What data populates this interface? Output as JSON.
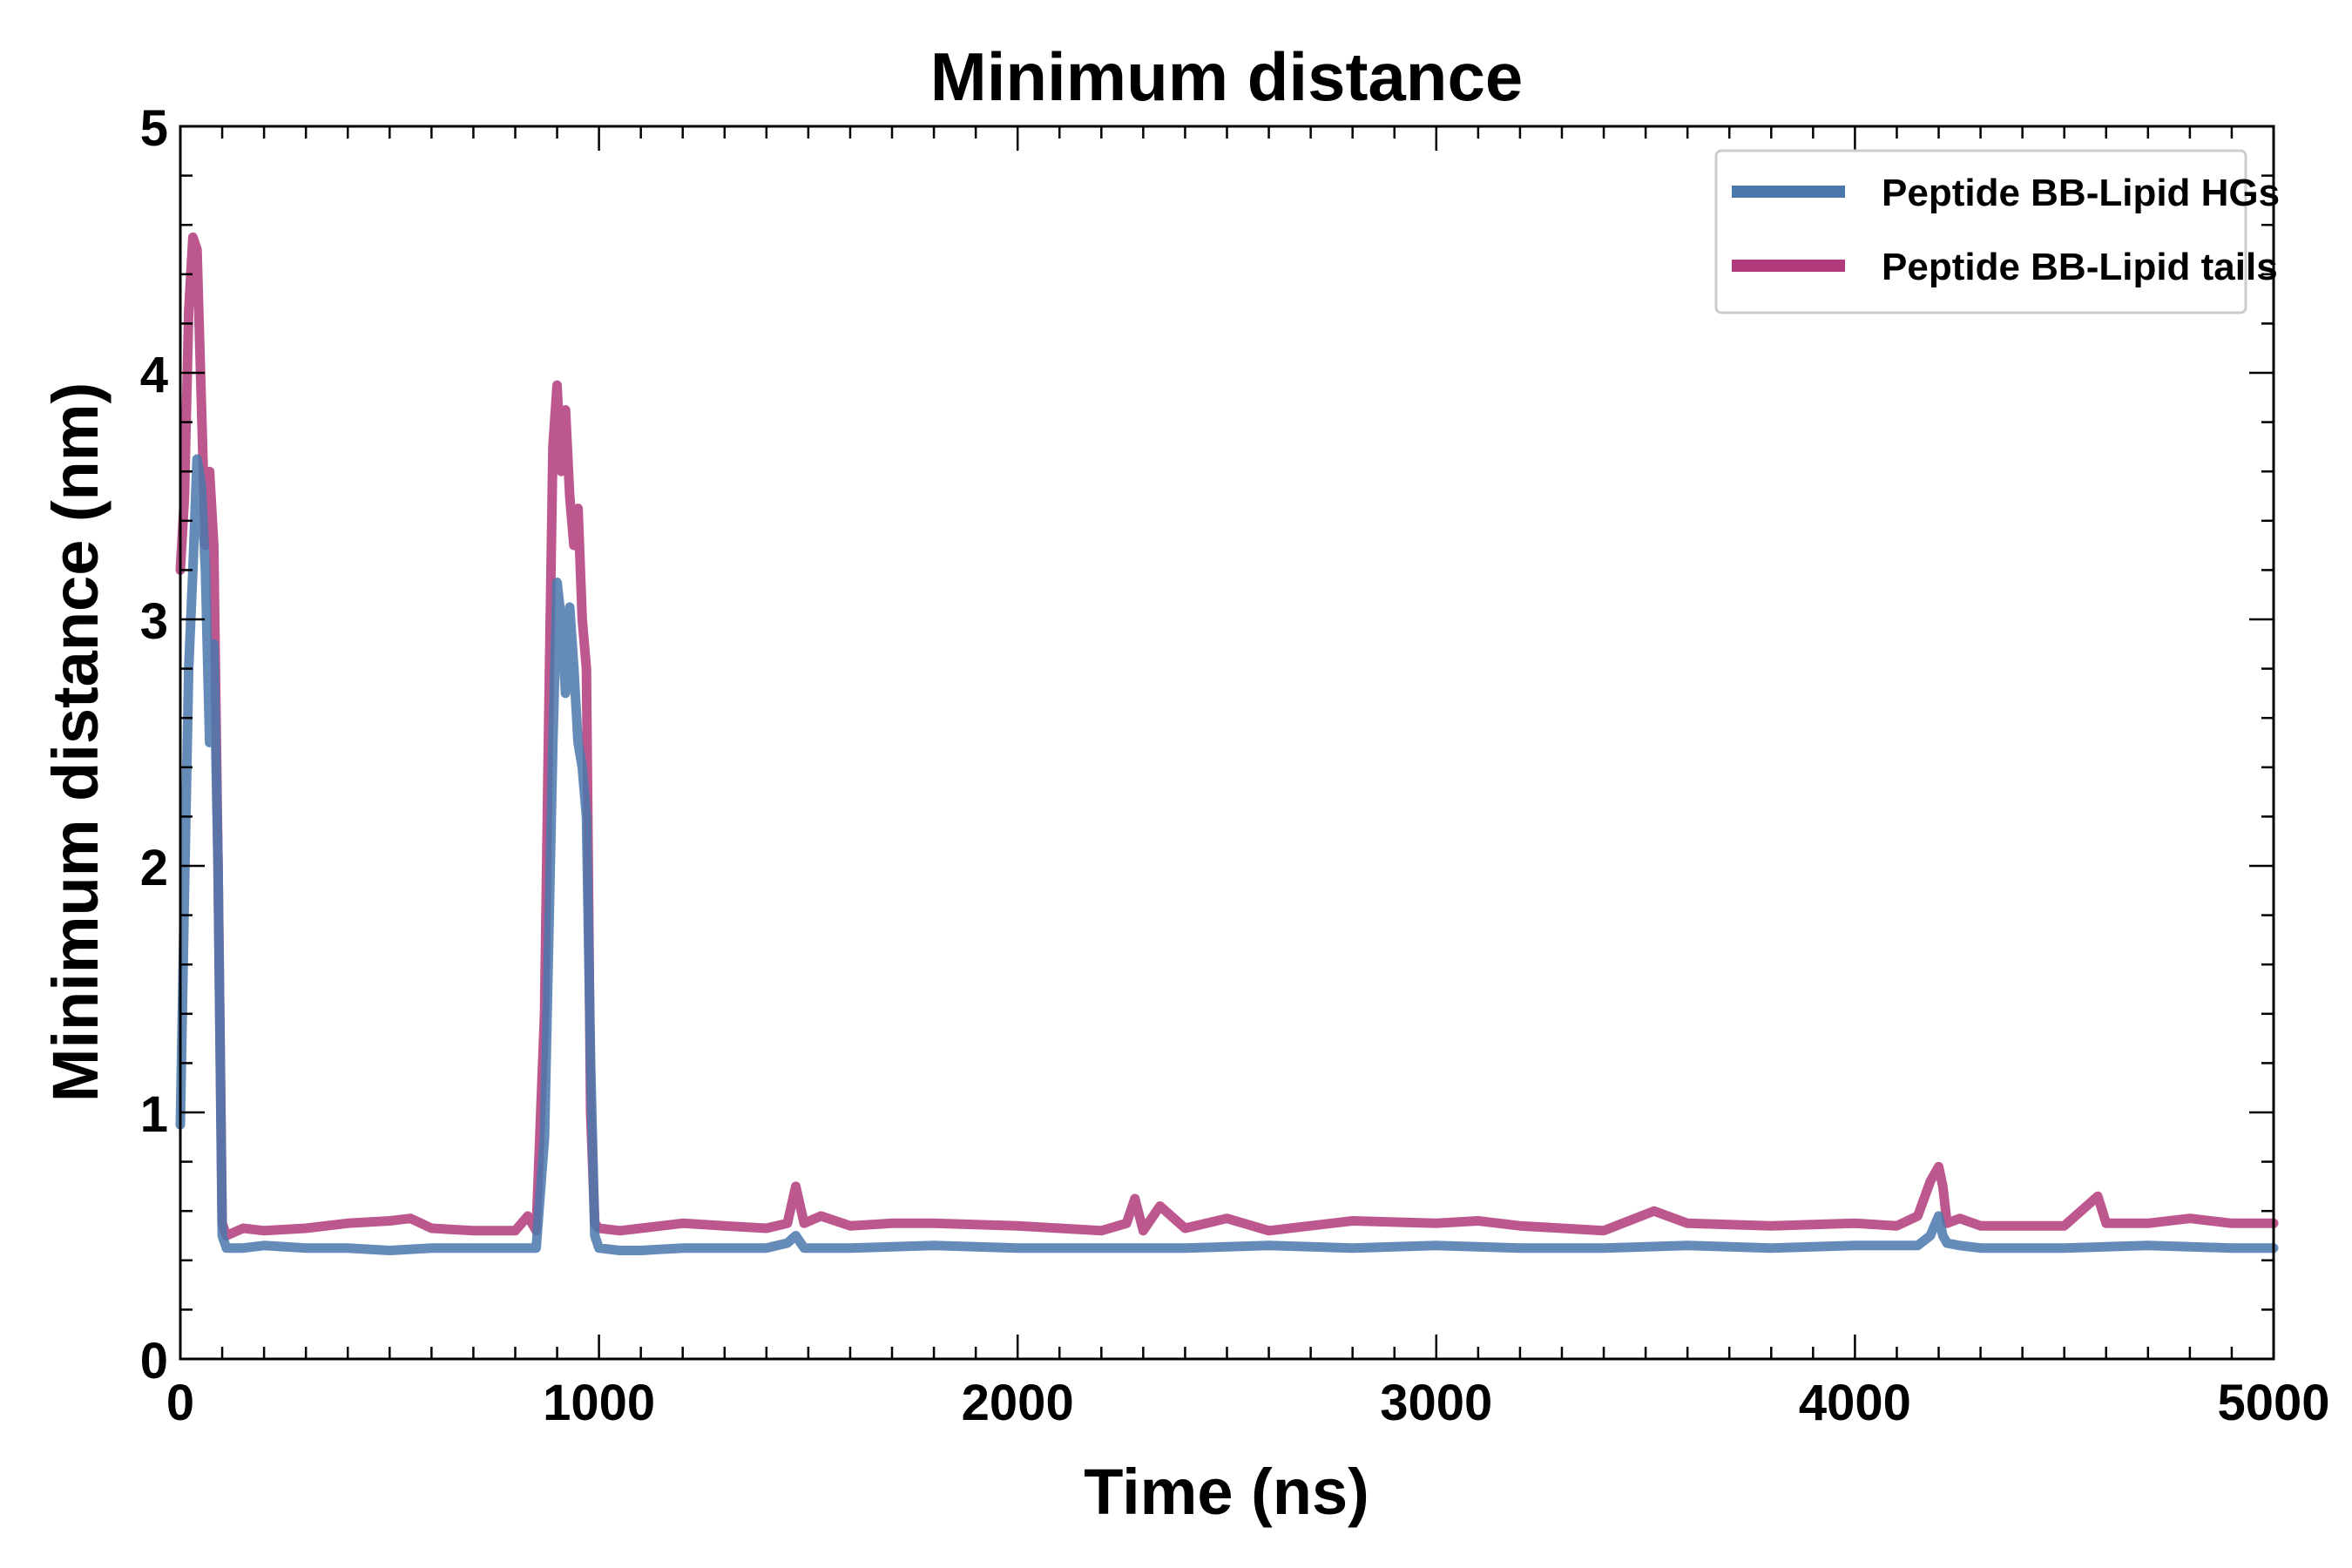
{
  "chart_data": {
    "type": "line",
    "title": "Minimum distance",
    "xlabel": "Time (ns)",
    "ylabel": "Minimum distance (nm)",
    "xlim": [
      0,
      5000
    ],
    "ylim": [
      0,
      5
    ],
    "xticks": [
      "0",
      "1000",
      "2000",
      "3000",
      "4000",
      "5000"
    ],
    "yticks": [
      "0",
      "1",
      "2",
      "3",
      "4",
      "5"
    ],
    "grid": false,
    "legend_position": "top-right",
    "series": [
      {
        "name": "Peptide BB-Lipid HGs",
        "color": "#4a78ac",
        "x": [
          0,
          10,
          20,
          30,
          40,
          50,
          60,
          70,
          80,
          90,
          100,
          110,
          150,
          200,
          300,
          400,
          500,
          600,
          700,
          800,
          850,
          870,
          880,
          890,
          900,
          910,
          920,
          930,
          940,
          950,
          960,
          970,
          980,
          990,
          1000,
          1050,
          1100,
          1200,
          1300,
          1400,
          1450,
          1470,
          1490,
          1600,
          1800,
          2000,
          2200,
          2400,
          2600,
          2800,
          3000,
          3200,
          3400,
          3600,
          3800,
          4000,
          4100,
          4150,
          4180,
          4200,
          4210,
          4220,
          4250,
          4300,
          4500,
          4700,
          4900,
          5000
        ],
        "y": [
          0.95,
          1.9,
          2.8,
          3.2,
          3.65,
          3.55,
          3.2,
          2.5,
          2.9,
          2.0,
          0.5,
          0.45,
          0.45,
          0.46,
          0.45,
          0.45,
          0.44,
          0.45,
          0.45,
          0.45,
          0.45,
          0.9,
          1.7,
          2.5,
          3.15,
          3.0,
          2.7,
          3.05,
          2.8,
          2.5,
          2.4,
          2.2,
          1.2,
          0.5,
          0.45,
          0.44,
          0.44,
          0.45,
          0.45,
          0.45,
          0.47,
          0.5,
          0.45,
          0.45,
          0.46,
          0.45,
          0.45,
          0.45,
          0.46,
          0.45,
          0.46,
          0.45,
          0.45,
          0.46,
          0.45,
          0.46,
          0.46,
          0.46,
          0.5,
          0.58,
          0.5,
          0.47,
          0.46,
          0.45,
          0.45,
          0.46,
          0.45,
          0.45
        ]
      },
      {
        "name": "Peptide BB-Lipid tails",
        "color": "#b23b7b",
        "x": [
          0,
          10,
          20,
          30,
          40,
          50,
          60,
          70,
          80,
          90,
          100,
          110,
          150,
          200,
          300,
          400,
          500,
          550,
          600,
          700,
          800,
          830,
          850,
          870,
          880,
          890,
          900,
          910,
          920,
          930,
          940,
          950,
          960,
          970,
          980,
          990,
          1000,
          1050,
          1100,
          1200,
          1300,
          1400,
          1450,
          1470,
          1490,
          1530,
          1600,
          1700,
          1800,
          2000,
          2200,
          2260,
          2280,
          2300,
          2340,
          2400,
          2500,
          2600,
          2800,
          3000,
          3100,
          3200,
          3400,
          3520,
          3600,
          3800,
          4000,
          4100,
          4150,
          4180,
          4200,
          4210,
          4220,
          4250,
          4300,
          4500,
          4580,
          4600,
          4700,
          4800,
          4900,
          5000
        ],
        "y": [
          3.2,
          3.5,
          4.25,
          4.55,
          4.5,
          3.9,
          3.3,
          3.6,
          3.3,
          2.0,
          0.55,
          0.5,
          0.53,
          0.52,
          0.53,
          0.55,
          0.56,
          0.57,
          0.53,
          0.52,
          0.52,
          0.58,
          0.52,
          1.4,
          2.6,
          3.7,
          3.95,
          3.6,
          3.85,
          3.5,
          3.3,
          3.45,
          3.0,
          2.8,
          1.0,
          0.55,
          0.53,
          0.52,
          0.53,
          0.55,
          0.54,
          0.53,
          0.55,
          0.7,
          0.55,
          0.58,
          0.54,
          0.55,
          0.55,
          0.54,
          0.52,
          0.55,
          0.65,
          0.52,
          0.62,
          0.53,
          0.57,
          0.52,
          0.56,
          0.55,
          0.56,
          0.54,
          0.52,
          0.6,
          0.55,
          0.54,
          0.55,
          0.54,
          0.58,
          0.72,
          0.78,
          0.7,
          0.55,
          0.57,
          0.54,
          0.54,
          0.66,
          0.55,
          0.55,
          0.57,
          0.55,
          0.55
        ]
      }
    ]
  }
}
